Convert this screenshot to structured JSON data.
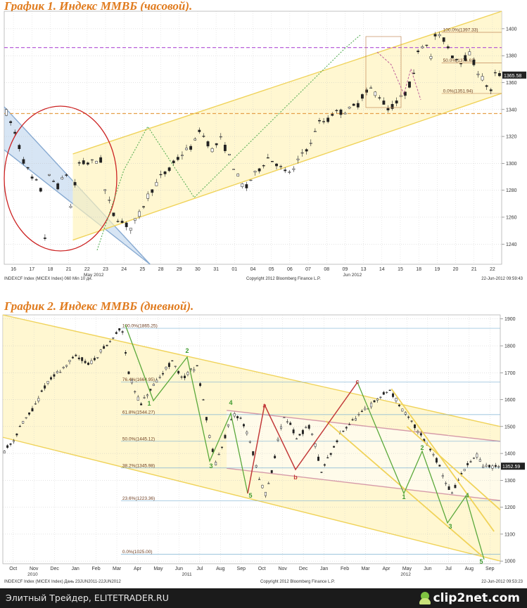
{
  "chart_data": [
    {
      "type": "candlestick",
      "title": "График 1.   Индекс ММВБ (часовой).",
      "ylim": [
        1225,
        1413
      ],
      "y_ticks": [
        1240,
        1260,
        1280,
        1300,
        1320,
        1340,
        1360,
        1380,
        1400
      ],
      "x_tick_labels": [
        "16",
        "17",
        "18",
        "21",
        "22",
        "23",
        "24",
        "25",
        "28",
        "29",
        "30",
        "31",
        "01",
        "04",
        "05",
        "06",
        "07",
        "08",
        "09",
        "13",
        "14",
        "15",
        "18",
        "19",
        "20",
        "21",
        "22"
      ],
      "x_group_labels": [
        "May 2012",
        "Jun 2012"
      ],
      "last_price_label": "1365.58",
      "fib_levels": [
        {
          "label": "100.0%(1397.33)",
          "value": 1397.33
        },
        {
          "label": "50.0%(1374.63)",
          "value": 1374.63
        },
        {
          "label": "0.0%(1351.94)",
          "value": 1351.94
        }
      ],
      "horizontal_levels": [
        1386,
        1337
      ],
      "footer_left": "INDEXCF Index (MICEX Index) 060 Min 10 дн.",
      "footer_center": "Copyright 2012 Bloomberg Finance L.P.",
      "footer_right": "22-Jun-2012 09:59:43",
      "price_path": [
        [
          0,
          1338
        ],
        [
          2,
          1322
        ],
        [
          4,
          1302
        ],
        [
          6,
          1288
        ],
        [
          7,
          1286
        ],
        [
          8,
          1280
        ],
        [
          9,
          1245
        ],
        [
          10,
          1290
        ],
        [
          12,
          1283
        ],
        [
          14,
          1292
        ],
        [
          15,
          1268
        ],
        [
          17,
          1300
        ],
        [
          19,
          1300
        ],
        [
          21,
          1302
        ],
        [
          22,
          1302
        ],
        [
          23,
          1280
        ],
        [
          25,
          1262
        ],
        [
          27,
          1256
        ],
        [
          29,
          1252
        ],
        [
          31,
          1262
        ],
        [
          33,
          1276
        ],
        [
          35,
          1285
        ],
        [
          36,
          1290
        ],
        [
          38,
          1295
        ],
        [
          39,
          1300
        ],
        [
          41,
          1307
        ],
        [
          43,
          1312
        ],
        [
          44,
          1316
        ],
        [
          45,
          1325
        ],
        [
          46,
          1320
        ],
        [
          48,
          1310
        ],
        [
          50,
          1318
        ],
        [
          52,
          1305
        ],
        [
          54,
          1290
        ],
        [
          55,
          1284
        ],
        [
          56,
          1282
        ],
        [
          57,
          1288
        ],
        [
          59,
          1296
        ],
        [
          61,
          1304
        ],
        [
          63,
          1300
        ],
        [
          65,
          1293
        ],
        [
          67,
          1295
        ],
        [
          69,
          1308
        ],
        [
          71,
          1314
        ],
        [
          72,
          1325
        ],
        [
          73,
          1330
        ],
        [
          75,
          1332
        ],
        [
          76,
          1337
        ],
        [
          78,
          1338
        ],
        [
          80,
          1340
        ],
        [
          82,
          1344
        ],
        [
          83,
          1350
        ],
        [
          85,
          1355
        ],
        [
          87,
          1350
        ],
        [
          89,
          1340
        ],
        [
          91,
          1345
        ],
        [
          93,
          1352
        ],
        [
          95,
          1365
        ],
        [
          96,
          1385
        ],
        [
          98,
          1390
        ],
        [
          99,
          1378
        ],
        [
          100,
          1395
        ],
        [
          102,
          1392
        ],
        [
          104,
          1380
        ],
        [
          106,
          1376
        ],
        [
          108,
          1381
        ],
        [
          110,
          1368
        ],
        [
          112,
          1358
        ],
        [
          113,
          1353
        ],
        [
          114,
          1366
        ]
      ]
    },
    {
      "type": "candlestick",
      "title": "График 2.   Индекс ММВБ (дневной).",
      "ylim": [
        990,
        1915
      ],
      "y_ticks": [
        1000,
        1100,
        1200,
        1300,
        1400,
        1500,
        1600,
        1700,
        1800,
        1900
      ],
      "x_tick_labels": [
        "Oct",
        "Nov",
        "Dec",
        "Jan",
        "Feb",
        "Mar",
        "Apr",
        "May",
        "Jun",
        "Jul",
        "Aug",
        "Sep",
        "Oct",
        "Nov",
        "Dec",
        "Jan",
        "Feb",
        "Mar",
        "Apr",
        "May",
        "Jun",
        "Jul",
        "Aug",
        "Sep"
      ],
      "x_group_labels": [
        "2010",
        "2011",
        "2012"
      ],
      "last_price_label": "1352.59",
      "fib_levels": [
        {
          "label": "100.0%(1865.25)",
          "value": 1865.25
        },
        {
          "label": "76.4%(1664.95)",
          "value": 1664.95
        },
        {
          "label": "61.8%(1544.27)",
          "value": 1544.27
        },
        {
          "label": "50.0%(1445.12)",
          "value": 1445.12
        },
        {
          "label": "38.2%(1345.98)",
          "value": 1345.98
        },
        {
          "label": "23.6%(1223.36)",
          "value": 1223.36
        },
        {
          "label": "0.0%(1025.00)",
          "value": 1025.0
        }
      ],
      "wave_labels": [
        "1",
        "2",
        "3",
        "4",
        "5",
        "a",
        "b",
        "c",
        "1",
        "2",
        "3",
        "4",
        "5"
      ],
      "footer_left": "INDEXCF Index (MICEX Index) Дань 23JUN2011-22JUN2012",
      "footer_center": "Copyright 2012 Bloomberg Finance L.P.",
      "footer_right": "22-Jun-2012 09:53:23",
      "price_path": [
        [
          0,
          1410
        ],
        [
          3,
          1450
        ],
        [
          5,
          1500
        ],
        [
          7,
          1530
        ],
        [
          9,
          1560
        ],
        [
          11,
          1600
        ],
        [
          13,
          1650
        ],
        [
          15,
          1675
        ],
        [
          17,
          1700
        ],
        [
          19,
          1720
        ],
        [
          21,
          1740
        ],
        [
          23,
          1760
        ],
        [
          25,
          1750
        ],
        [
          27,
          1730
        ],
        [
          29,
          1750
        ],
        [
          31,
          1780
        ],
        [
          33,
          1800
        ],
        [
          35,
          1830
        ],
        [
          37,
          1860
        ],
        [
          38,
          1855
        ],
        [
          40,
          1700
        ],
        [
          42,
          1630
        ],
        [
          44,
          1580
        ],
        [
          46,
          1620
        ],
        [
          48,
          1650
        ],
        [
          50,
          1680
        ],
        [
          52,
          1720
        ],
        [
          54,
          1740
        ],
        [
          56,
          1700
        ],
        [
          58,
          1680
        ],
        [
          60,
          1710
        ],
        [
          62,
          1720
        ],
        [
          64,
          1600
        ],
        [
          66,
          1460
        ],
        [
          68,
          1360
        ],
        [
          70,
          1430
        ],
        [
          72,
          1500
        ],
        [
          74,
          1540
        ],
        [
          76,
          1530
        ],
        [
          78,
          1480
        ],
        [
          80,
          1400
        ],
        [
          82,
          1300
        ],
        [
          84,
          1250
        ],
        [
          86,
          1330
        ],
        [
          88,
          1450
        ],
        [
          90,
          1540
        ],
        [
          92,
          1510
        ],
        [
          94,
          1450
        ],
        [
          96,
          1480
        ],
        [
          98,
          1500
        ],
        [
          100,
          1430
        ],
        [
          102,
          1330
        ],
        [
          104,
          1380
        ],
        [
          106,
          1420
        ],
        [
          108,
          1470
        ],
        [
          110,
          1500
        ],
        [
          112,
          1520
        ],
        [
          114,
          1540
        ],
        [
          116,
          1560
        ],
        [
          118,
          1580
        ],
        [
          120,
          1600
        ],
        [
          122,
          1620
        ],
        [
          124,
          1635
        ],
        [
          126,
          1600
        ],
        [
          128,
          1560
        ],
        [
          130,
          1530
        ],
        [
          132,
          1500
        ],
        [
          134,
          1470
        ],
        [
          136,
          1430
        ],
        [
          138,
          1400
        ],
        [
          140,
          1350
        ],
        [
          142,
          1290
        ],
        [
          144,
          1250
        ],
        [
          146,
          1300
        ],
        [
          148,
          1340
        ],
        [
          150,
          1370
        ],
        [
          152,
          1390
        ],
        [
          154,
          1352
        ]
      ]
    }
  ],
  "footer": {
    "caption": "Элитный Трейдер, ELITETRADER.RU",
    "logo_text": "clip2net.com",
    "logo_icon": "clip2net-icon"
  }
}
